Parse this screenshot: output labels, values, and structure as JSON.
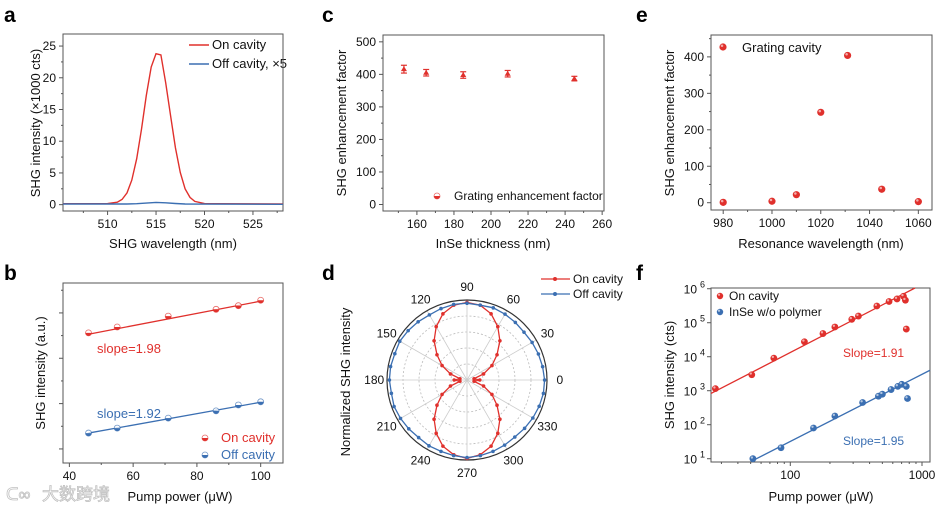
{
  "colors": {
    "red": "#e0302c",
    "blue": "#3b6fb2"
  },
  "watermark": "大数跨境",
  "chart_data": [
    {
      "panel": "a",
      "type": "line",
      "xlabel": "SHG wavelength (nm)",
      "ylabel": "SHG intensity (×1000 cts)",
      "xlim": [
        505.4,
        528.1
      ],
      "ylim": [
        -1,
        26.9
      ],
      "xticks": [
        510,
        515,
        520,
        525
      ],
      "yticks": [
        0,
        5,
        10,
        15,
        20,
        25
      ],
      "legend_position": "top-right",
      "series": [
        {
          "name": "On cavity",
          "x": [
            505.4,
            509,
            510,
            511,
            511.5,
            512,
            512.5,
            513,
            513.5,
            514,
            514.5,
            515,
            515.5,
            516,
            516.5,
            517,
            517.5,
            518,
            518.5,
            519,
            520,
            521,
            528.1
          ],
          "y": [
            0.15,
            0.15,
            0.17,
            0.39,
            0.83,
            1.85,
            3.87,
            7.24,
            11.9,
            17.2,
            21.7,
            23.8,
            23.6,
            19.2,
            14.0,
            9.0,
            5.05,
            2.5,
            1.15,
            0.52,
            0.17,
            0.15,
            0.1
          ]
        },
        {
          "name": "Off cavity, ×5",
          "x": [
            505.4,
            512,
            513,
            514,
            515,
            516,
            517,
            518,
            528.1
          ],
          "y": [
            0.1,
            0.1,
            0.15,
            0.25,
            0.35,
            0.3,
            0.18,
            0.1,
            0.05
          ]
        }
      ]
    },
    {
      "panel": "b",
      "type": "scatter",
      "xlabel": "Pump power (μW)",
      "ylabel": "SHG intensity (a.u.)",
      "xlim": [
        38,
        107
      ],
      "ylim": [
        0.69,
        4.66
      ],
      "yscale": "log (unlabelled decades)",
      "xticks": [
        40,
        60,
        80,
        100
      ],
      "yticks_unlabelled": [
        1,
        2,
        3,
        4
      ],
      "legend_position": "bottom-right",
      "series": [
        {
          "name": "On cavity",
          "x": [
            46,
            55,
            71,
            86,
            93,
            100
          ],
          "y": [
            3.56,
            3.69,
            3.93,
            4.08,
            4.16,
            4.28
          ],
          "fit": [
            [
              46,
              3.53
            ],
            [
              100,
              4.26
            ]
          ],
          "annotation": "slope=1.98"
        },
        {
          "name": "Off cavity",
          "x": [
            46,
            55,
            71,
            86,
            93,
            100
          ],
          "y": [
            1.35,
            1.46,
            1.68,
            1.84,
            1.97,
            2.04
          ],
          "fit": [
            [
              46,
              1.35
            ],
            [
              100,
              2.03
            ]
          ],
          "annotation": "slope=1.92"
        }
      ]
    },
    {
      "panel": "c",
      "type": "scatter",
      "xlabel": "InSe thickness (nm)",
      "ylabel": "SHG enhancement factor",
      "xlim": [
        141.7,
        261
      ],
      "ylim": [
        -20,
        521
      ],
      "xticks": [
        160,
        180,
        200,
        220,
        240,
        260
      ],
      "yticks": [
        0,
        100,
        200,
        300,
        400,
        500
      ],
      "legend_position": "bottom-right",
      "series": [
        {
          "name": "Grating enhancement factor",
          "x": [
            153,
            165,
            185,
            209,
            245
          ],
          "y": [
            416,
            405,
            398,
            402,
            387
          ],
          "err": [
            12,
            10,
            10,
            10,
            7
          ]
        }
      ]
    },
    {
      "panel": "d",
      "type": "polar",
      "ylabel": "Normalized SHG intensity",
      "angle_ticks": [
        0,
        30,
        60,
        90,
        120,
        150,
        180,
        210,
        240,
        270,
        300,
        330
      ],
      "legend_position": "top-right",
      "angles": [
        0,
        10,
        20,
        30,
        40,
        50,
        60,
        70,
        80,
        90,
        100,
        110,
        120,
        130,
        140,
        150,
        160,
        170,
        180,
        190,
        200,
        210,
        220,
        230,
        240,
        250,
        260,
        270,
        280,
        290,
        300,
        310,
        320,
        330,
        340,
        350
      ],
      "series": [
        {
          "name": "On cavity",
          "r": [
            0.16,
            0.09,
            0.22,
            0.36,
            0.49,
            0.64,
            0.77,
            0.88,
            0.95,
            0.97,
            0.95,
            0.88,
            0.77,
            0.64,
            0.49,
            0.36,
            0.22,
            0.09,
            0.16,
            0.09,
            0.22,
            0.36,
            0.49,
            0.64,
            0.77,
            0.88,
            0.95,
            0.98,
            0.95,
            0.88,
            0.77,
            0.64,
            0.49,
            0.36,
            0.22,
            0.09
          ]
        },
        {
          "name": "Off cavity",
          "r": [
            0.97,
            0.96,
            0.95,
            0.94,
            0.93,
            0.94,
            0.95,
            0.96,
            0.95,
            0.96,
            0.96,
            0.95,
            0.94,
            0.95,
            0.96,
            0.97,
            0.96,
            0.97,
            0.97,
            0.96,
            0.97,
            0.96,
            0.95,
            0.94,
            0.95,
            0.95,
            0.96,
            0.97,
            0.96,
            0.95,
            0.94,
            0.93,
            0.94,
            0.95,
            0.96,
            0.97
          ]
        }
      ]
    },
    {
      "panel": "e",
      "type": "scatter",
      "xlabel": "Resonance wavelength (nm)",
      "ylabel": "SHG enhancement factor",
      "xlim": [
        975,
        1065.6
      ],
      "ylim": [
        -20,
        460
      ],
      "xticks": [
        980,
        1000,
        1020,
        1040,
        1060
      ],
      "yticks": [
        0,
        100,
        200,
        300,
        400
      ],
      "legend_position": "top-left",
      "series": [
        {
          "name": "Grating cavity",
          "x": [
            980,
            1000,
            1010,
            1020,
            1031,
            1045,
            1060
          ],
          "y": [
            1,
            4,
            22,
            248,
            404,
            37,
            3
          ]
        }
      ]
    },
    {
      "panel": "f",
      "type": "scatter",
      "xlabel": "Pump power (μW)",
      "ylabel": "SHG intensity (cts)",
      "xscale": "log",
      "yscale": "log",
      "xlim": [
        25,
        1150
      ],
      "ylim": [
        8,
        1050000
      ],
      "xticks": [
        100,
        1000
      ],
      "ytick_exponents": [
        1,
        2,
        3,
        4,
        5,
        6
      ],
      "legend_position": "top-left",
      "series": [
        {
          "name": "On cavity",
          "x": [
            27,
            51,
            75,
            128,
            177,
            218,
            293,
            329,
            454,
            562,
            646,
            723,
            748,
            760
          ],
          "y": [
            1150,
            2950,
            9100,
            27500,
            48000,
            75000,
            126000,
            157000,
            310000,
            420000,
            500000,
            600000,
            460000,
            65000
          ],
          "fit": [
            [
              25,
              830
            ],
            [
              885,
              1050000
            ]
          ],
          "annotation": "Slope=1.91"
        },
        {
          "name": "InSe w/o polymer",
          "x": [
            52,
            85,
            150,
            218,
            354,
            467,
            500,
            582,
            655,
            702,
            760,
            776
          ],
          "y": [
            10,
            21,
            80,
            180,
            450,
            690,
            790,
            1080,
            1340,
            1540,
            1340,
            590
          ],
          "fit": [
            [
              51,
              8.5
            ],
            [
              1150,
              4000
            ]
          ],
          "annotation": "Slope=1.95"
        }
      ]
    }
  ],
  "panels": {
    "a": "a",
    "b": "b",
    "c": "c",
    "d": "d",
    "e": "e",
    "f": "f"
  }
}
